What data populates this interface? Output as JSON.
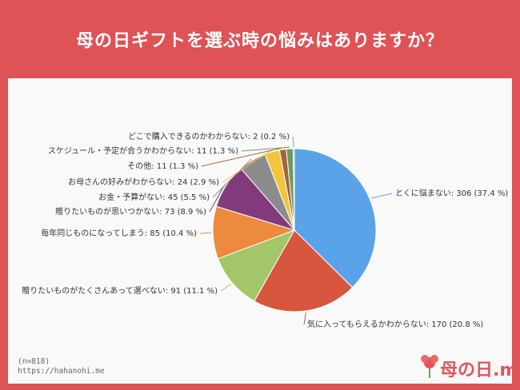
{
  "title": "母の日ギフトを選ぶ時の悩みはありますか？",
  "chart_data": {
    "type": "pie",
    "slices": [
      {
        "label": "とくに悩まない: 306 (37.4 %)",
        "value": 306,
        "percent": 37.4,
        "color": "#5aa3e8"
      },
      {
        "label": "気に入ってもらえるかわからない: 170 (20.8 %)",
        "value": 170,
        "percent": 20.8,
        "color": "#d6573d"
      },
      {
        "label": "贈りたいものがたくさんあって選べない: 91 (11.1 %)",
        "value": 91,
        "percent": 11.1,
        "color": "#a3c768"
      },
      {
        "label": "毎年同じものになってしまう: 85 (10.4 %)",
        "value": 85,
        "percent": 10.4,
        "color": "#ec8a3e"
      },
      {
        "label": "贈りたいものが思いつかない: 73 (8.9 %)",
        "value": 73,
        "percent": 8.9,
        "color": "#833a7c"
      },
      {
        "label": "お金・予算がない: 45 (5.5 %)",
        "value": 45,
        "percent": 5.5,
        "color": "#8c8c8c"
      },
      {
        "label": "お母さんの好みがわからない: 24 (2.9 %)",
        "value": 24,
        "percent": 2.9,
        "color": "#f2c53d"
      },
      {
        "label": "その他: 11 (1.3 %)",
        "value": 11,
        "percent": 1.3,
        "color": "#a0673c"
      },
      {
        "label": "スケジュール・予定が合うかわからない: 11 (1.3 %)",
        "value": 11,
        "percent": 1.3,
        "color": "#6e9a5d"
      },
      {
        "label": "どこで購入できるのかわからない: 2 (0.2 %)",
        "value": 2,
        "percent": 0.2,
        "color": "#4db3c9"
      }
    ]
  },
  "footer": {
    "n_label": "(n=818)",
    "url": "https://hahanohi.me"
  },
  "logo": {
    "text": "母の日.me",
    "icon": "carnation-icon"
  }
}
